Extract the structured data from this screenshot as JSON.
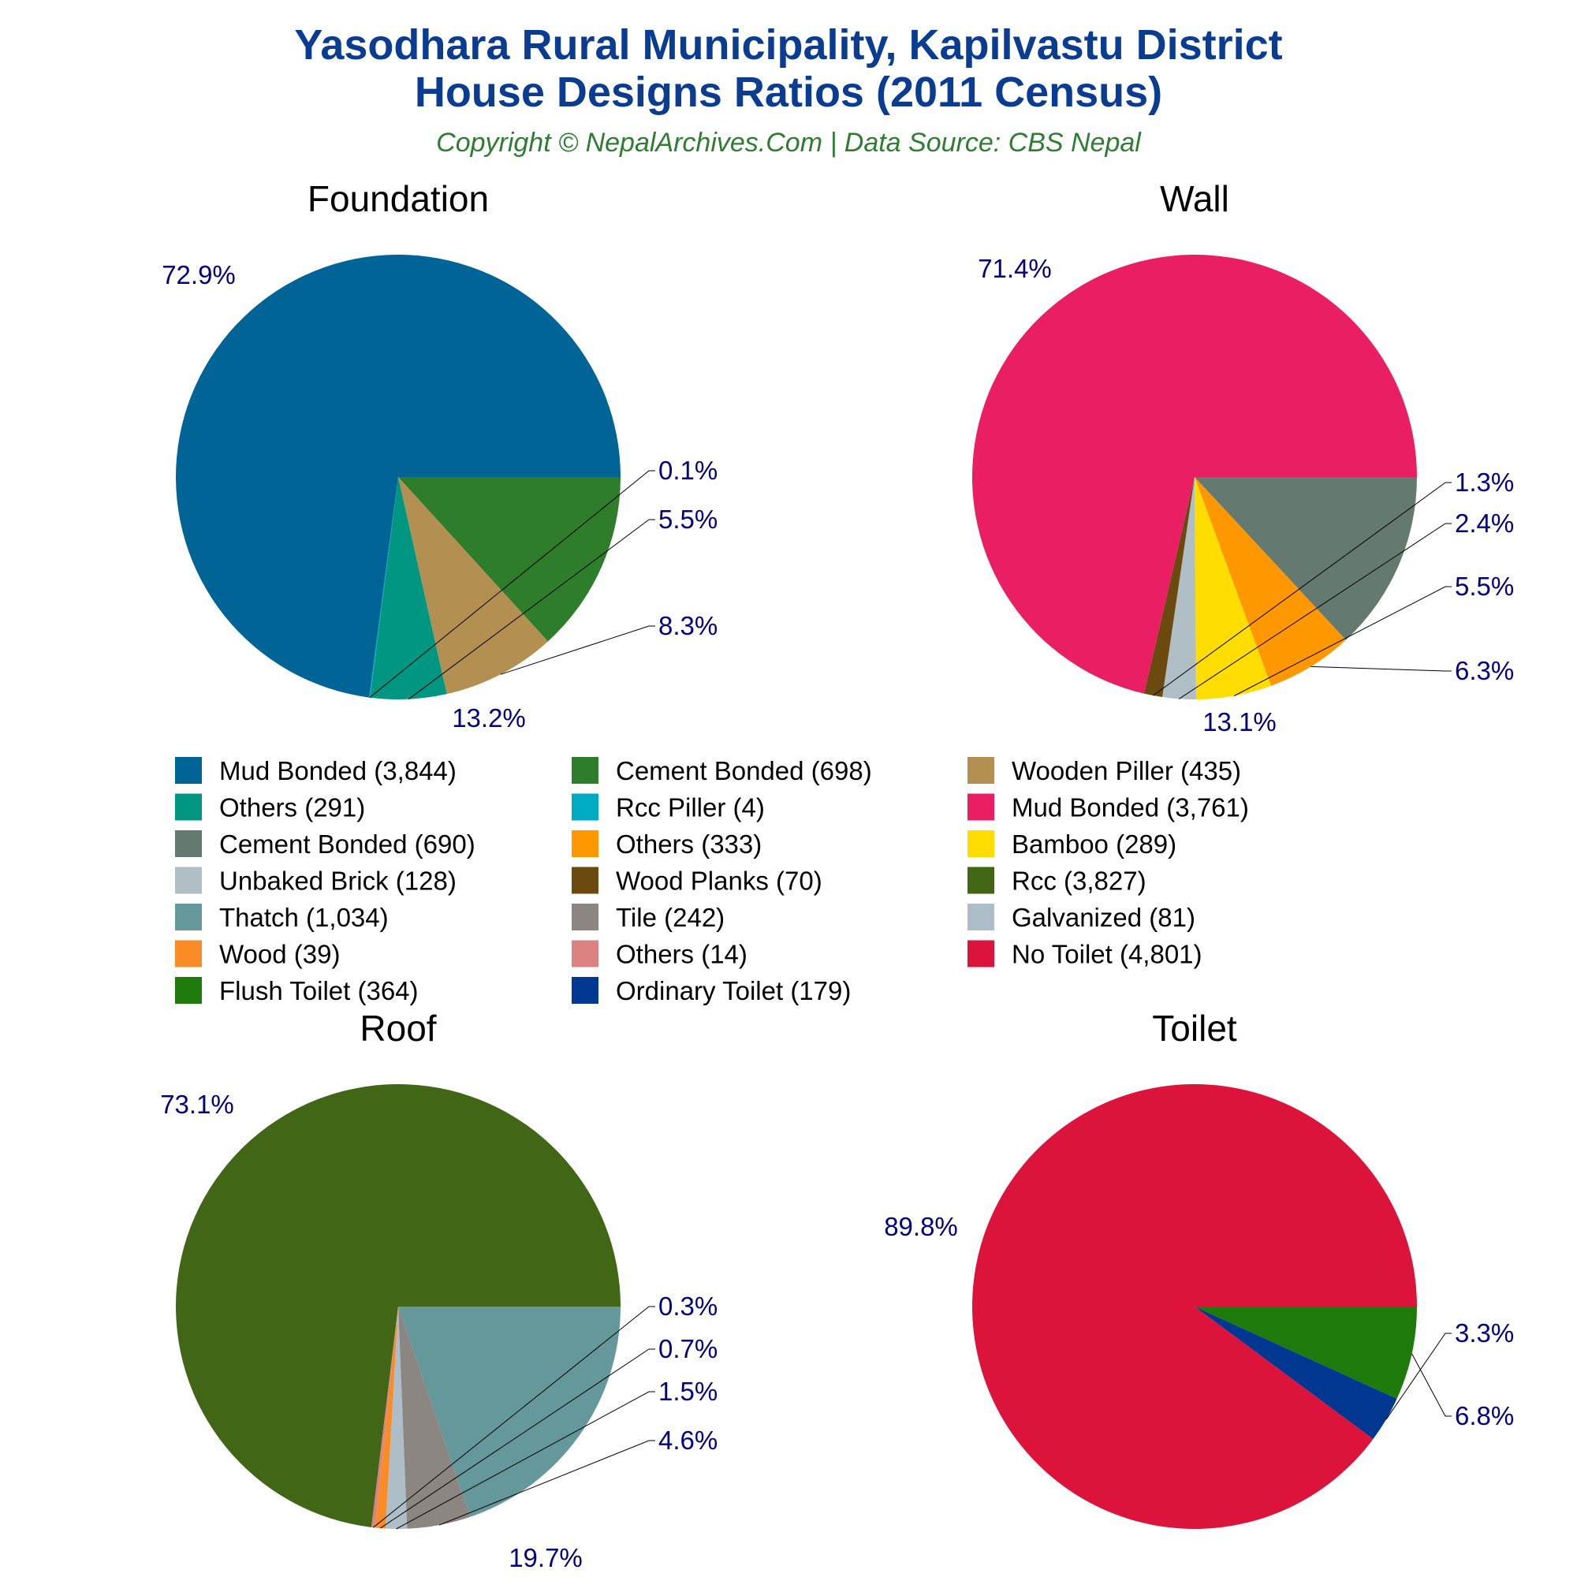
{
  "header": {
    "title_line1": "Yasodhara Rural Municipality, Kapilvastu District",
    "title_line2": "House Designs Ratios (2011 Census)",
    "subtitle": "Copyright © NepalArchives.Com | Data Source: CBS Nepal"
  },
  "chart_data": [
    {
      "type": "pie",
      "title": "Foundation",
      "slices": [
        {
          "name": "Mud Bonded",
          "value": 3844,
          "label": "72.9%",
          "color": "#006496"
        },
        {
          "name": "Cement Bonded",
          "value": 698,
          "label": "13.2%",
          "color": "#2e7d2a"
        },
        {
          "name": "Wooden Piller",
          "value": 435,
          "label": "8.3%",
          "color": "#b38f52"
        },
        {
          "name": "Others",
          "value": 291,
          "label": "5.5%",
          "color": "#009682"
        },
        {
          "name": "Rcc Piller",
          "value": 4,
          "label": "0.1%",
          "color": "#00aac3"
        }
      ]
    },
    {
      "type": "pie",
      "title": "Wall",
      "slices": [
        {
          "name": "Mud Bonded",
          "value": 3761,
          "label": "71.4%",
          "color": "#e91e63"
        },
        {
          "name": "Cement Bonded",
          "value": 690,
          "label": "13.1%",
          "color": "#647a70"
        },
        {
          "name": "Others",
          "value": 333,
          "label": "6.3%",
          "color": "#ff9800"
        },
        {
          "name": "Bamboo",
          "value": 289,
          "label": "5.5%",
          "color": "#ffdd00"
        },
        {
          "name": "Unbaked Brick",
          "value": 128,
          "label": "2.4%",
          "color": "#b0bec5"
        },
        {
          "name": "Wood Planks",
          "value": 70,
          "label": "1.3%",
          "color": "#6b4a10"
        }
      ]
    },
    {
      "type": "pie",
      "title": "Roof",
      "slices": [
        {
          "name": "Rcc",
          "value": 3827,
          "label": "73.1%",
          "color": "#416616"
        },
        {
          "name": "Thatch",
          "value": 1034,
          "label": "19.7%",
          "color": "#64989a"
        },
        {
          "name": "Tile",
          "value": 242,
          "label": "4.6%",
          "color": "#8c8682"
        },
        {
          "name": "Galvanized",
          "value": 81,
          "label": "1.5%",
          "color": "#aebec8"
        },
        {
          "name": "Wood",
          "value": 39,
          "label": "0.7%",
          "color": "#fa8c28"
        },
        {
          "name": "Others",
          "value": 14,
          "label": "0.3%",
          "color": "#dc8282"
        }
      ]
    },
    {
      "type": "pie",
      "title": "Toilet",
      "slices": [
        {
          "name": "No Toilet",
          "value": 4801,
          "label": "89.8%",
          "color": "#dc143c"
        },
        {
          "name": "Flush Toilet",
          "value": 364,
          "label": "6.8%",
          "color": "#1e7a0a"
        },
        {
          "name": "Ordinary Toilet",
          "value": 179,
          "label": "3.3%",
          "color": "#003891"
        }
      ]
    }
  ],
  "legend": [
    {
      "text": "Mud Bonded (3,844)",
      "color": "#006496"
    },
    {
      "text": "Cement Bonded (698)",
      "color": "#2e7d2a"
    },
    {
      "text": "Wooden Piller (435)",
      "color": "#b38f52"
    },
    {
      "text": "Others (291)",
      "color": "#009682"
    },
    {
      "text": "Rcc Piller (4)",
      "color": "#00aac3"
    },
    {
      "text": "Mud Bonded (3,761)",
      "color": "#e91e63"
    },
    {
      "text": "Cement Bonded (690)",
      "color": "#647a70"
    },
    {
      "text": "Others (333)",
      "color": "#ff9800"
    },
    {
      "text": "Bamboo (289)",
      "color": "#ffdd00"
    },
    {
      "text": "Unbaked Brick (128)",
      "color": "#b0bec5"
    },
    {
      "text": "Wood Planks (70)",
      "color": "#6b4a10"
    },
    {
      "text": "Rcc (3,827)",
      "color": "#416616"
    },
    {
      "text": "Thatch (1,034)",
      "color": "#64989a"
    },
    {
      "text": "Tile (242)",
      "color": "#8c8682"
    },
    {
      "text": "Galvanized (81)",
      "color": "#aebec8"
    },
    {
      "text": "Wood (39)",
      "color": "#fa8c28"
    },
    {
      "text": "Others (14)",
      "color": "#dc8282"
    },
    {
      "text": "No Toilet (4,801)",
      "color": "#dc143c"
    },
    {
      "text": "Flush Toilet (364)",
      "color": "#1e7a0a"
    },
    {
      "text": "Ordinary Toilet (179)",
      "color": "#003891"
    }
  ]
}
